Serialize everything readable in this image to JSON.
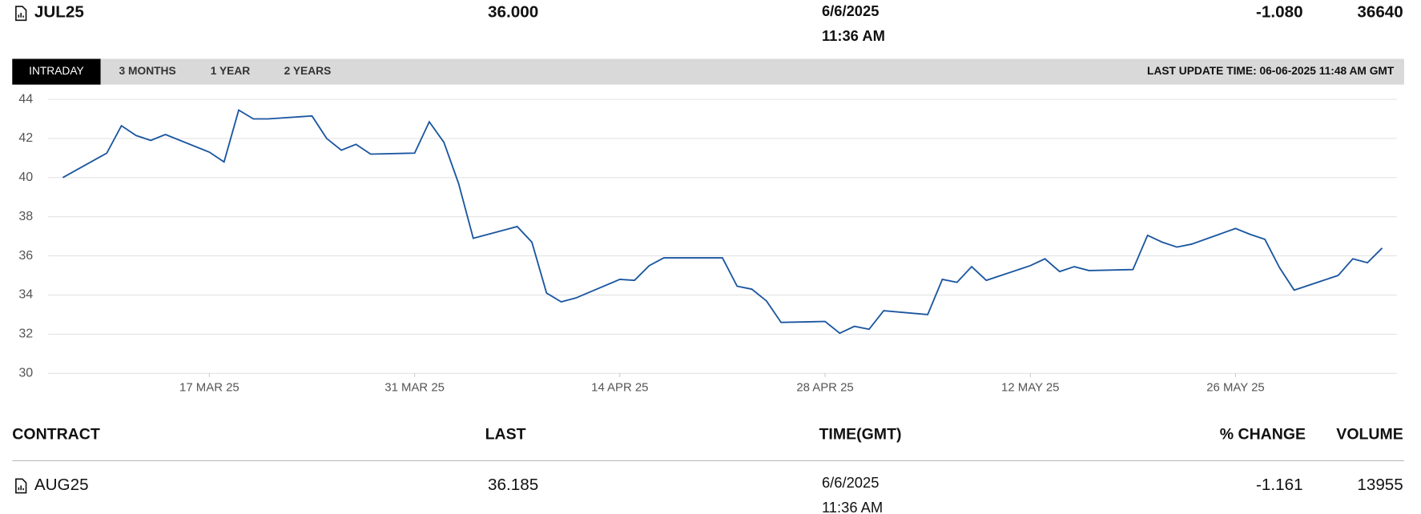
{
  "header": {
    "contract": "JUL25",
    "last": "36.000",
    "date": "6/6/2025",
    "time": "11:36 AM",
    "change": "-1.080",
    "volume": "36640"
  },
  "tabs": [
    "INTRADAY",
    "3 MONTHS",
    "1 YEAR",
    "2 YEARS"
  ],
  "last_update": "LAST UPDATE TIME: 06-06-2025 11:48 AM GMT",
  "chart_data": {
    "type": "line",
    "color": "#1a56a0",
    "grid": true,
    "x": [
      "2025-03-07",
      "2025-03-10",
      "2025-03-11",
      "2025-03-12",
      "2025-03-13",
      "2025-03-14",
      "2025-03-17",
      "2025-03-18",
      "2025-03-19",
      "2025-03-20",
      "2025-03-21",
      "2025-03-24",
      "2025-03-25",
      "2025-03-26",
      "2025-03-27",
      "2025-03-28",
      "2025-03-31",
      "2025-04-01",
      "2025-04-02",
      "2025-04-03",
      "2025-04-04",
      "2025-04-07",
      "2025-04-08",
      "2025-04-09",
      "2025-04-10",
      "2025-04-11",
      "2025-04-14",
      "2025-04-15",
      "2025-04-16",
      "2025-04-17",
      "2025-04-21",
      "2025-04-22",
      "2025-04-23",
      "2025-04-24",
      "2025-04-25",
      "2025-04-28",
      "2025-04-29",
      "2025-04-30",
      "2025-05-01",
      "2025-05-02",
      "2025-05-05",
      "2025-05-06",
      "2025-05-07",
      "2025-05-08",
      "2025-05-09",
      "2025-05-12",
      "2025-05-13",
      "2025-05-14",
      "2025-05-15",
      "2025-05-16",
      "2025-05-19",
      "2025-05-20",
      "2025-05-21",
      "2025-05-22",
      "2025-05-23",
      "2025-05-26",
      "2025-05-27",
      "2025-05-28",
      "2025-05-29",
      "2025-05-30",
      "2025-06-02",
      "2025-06-03",
      "2025-06-04",
      "2025-06-05"
    ],
    "values": [
      40.0,
      41.25,
      42.65,
      42.15,
      41.9,
      42.2,
      41.3,
      40.8,
      43.45,
      43.0,
      43.0,
      43.15,
      42.0,
      41.4,
      41.7,
      41.2,
      41.25,
      42.85,
      41.8,
      39.7,
      36.9,
      37.5,
      36.7,
      34.1,
      33.65,
      33.85,
      34.8,
      34.75,
      35.5,
      35.9,
      35.9,
      34.45,
      34.3,
      33.7,
      32.6,
      32.65,
      32.05,
      32.4,
      32.25,
      33.2,
      33.0,
      34.8,
      34.65,
      35.45,
      34.75,
      35.5,
      35.85,
      35.2,
      35.45,
      35.25,
      35.3,
      37.05,
      36.7,
      36.45,
      36.6,
      37.4,
      37.1,
      36.85,
      35.4,
      34.25,
      35.0,
      35.85,
      35.65,
      36.4
    ],
    "xlim": [
      "2025-03-06",
      "2025-06-06"
    ],
    "xticks": [
      {
        "value": "2025-03-17",
        "label": "17 MAR 25"
      },
      {
        "value": "2025-03-31",
        "label": "31 MAR 25"
      },
      {
        "value": "2025-04-14",
        "label": "14 APR 25"
      },
      {
        "value": "2025-04-28",
        "label": "28 APR 25"
      },
      {
        "value": "2025-05-12",
        "label": "12 MAY 25"
      },
      {
        "value": "2025-05-26",
        "label": "26 MAY 25"
      }
    ],
    "ylim": [
      30,
      44
    ],
    "yticks": [
      30,
      32,
      34,
      36,
      38,
      40,
      42,
      44
    ]
  },
  "table": {
    "columns": [
      "CONTRACT",
      "LAST",
      "TIME(GMT)",
      "% CHANGE",
      "VOLUME"
    ],
    "rows": [
      {
        "contract": "AUG25",
        "last": "36.185",
        "date": "6/6/2025",
        "time": "11:36 AM",
        "change": "-1.161",
        "volume": "13955"
      }
    ]
  }
}
